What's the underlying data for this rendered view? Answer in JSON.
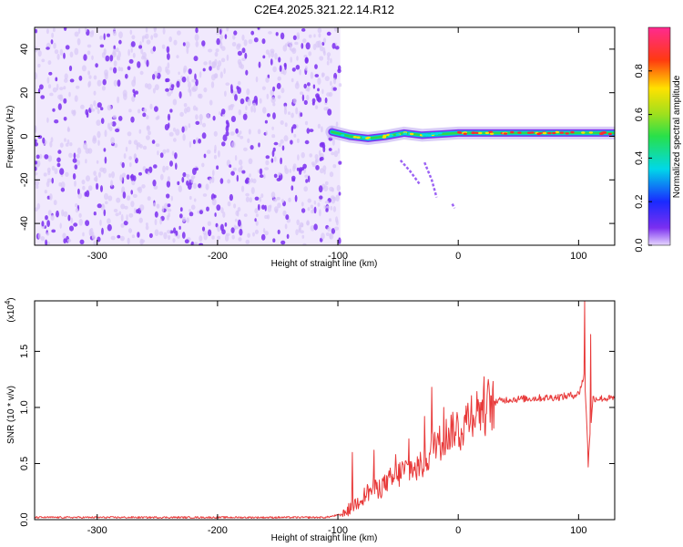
{
  "title": "C2E4.2025.321.22.14.R12",
  "colors": {
    "spectrogram_main": "#7b2ff0",
    "spectrogram_light": "#d9c7f7",
    "snr_line": "#e83a3a",
    "axis": "#000000"
  },
  "chart_data": [
    {
      "type": "heatmap",
      "title": "C2E4.2025.321.22.14.R12",
      "xlabel": "Height of straight line (km)",
      "ylabel": "Frequency (Hz)",
      "xlim": [
        -352,
        130
      ],
      "ylim": [
        -50,
        50
      ],
      "xticks": [
        -300,
        -200,
        -100,
        0,
        100
      ],
      "yticks": [
        -40,
        -20,
        0,
        20,
        40
      ],
      "noise_region_x": [
        -352,
        -98
      ],
      "signal_band": {
        "x": [
          -105,
          -90,
          -75,
          -60,
          -45,
          -30,
          -15,
          0,
          20,
          40,
          60,
          80,
          100,
          130
        ],
        "center_hz": [
          2,
          0,
          -1,
          0,
          1.5,
          0.5,
          1,
          1.5,
          1.5,
          1.5,
          1.5,
          1.5,
          1.5,
          1.5
        ]
      },
      "fading_trails": [
        {
          "x": [
            -48,
            -40,
            -32
          ],
          "y": [
            -11,
            -16,
            -22
          ]
        },
        {
          "x": [
            -28,
            -22,
            -18
          ],
          "y": [
            -12,
            -20,
            -28
          ]
        },
        {
          "x": [
            -5,
            -3
          ],
          "y": [
            -31,
            -33
          ]
        }
      ],
      "colorbar": {
        "label": "Normalized spectral amplitude",
        "range": [
          0,
          1
        ],
        "ticks": [
          "0.0",
          "0.2",
          "0.4",
          "0.6",
          "0.8"
        ]
      }
    },
    {
      "type": "line",
      "xlabel": "Height of straight line (km)",
      "ylabel": "SNR (10 * v/v)",
      "yscale_label": "(x10",
      "yscale_exp": "4",
      "xlim": [
        -352,
        130
      ],
      "ylim": [
        0,
        1.95
      ],
      "xticks": [
        -300,
        -200,
        -100,
        0,
        100
      ],
      "yticks": [
        "0.0",
        "0.5",
        "1.0",
        "1.5"
      ],
      "series": [
        {
          "x": [
            -352,
            -300,
            -250,
            -200,
            -150,
            -110,
            -95,
            -85,
            -75,
            -65,
            -55,
            -45,
            -35,
            -25,
            -20,
            -15,
            -10,
            -5,
            0,
            5,
            10,
            20,
            30,
            40,
            60,
            80,
            90,
            100,
            105,
            108,
            112,
            120,
            130
          ],
          "y": [
            0.02,
            0.02,
            0.02,
            0.02,
            0.02,
            0.02,
            0.05,
            0.15,
            0.25,
            0.3,
            0.35,
            0.45,
            0.45,
            0.55,
            0.7,
            0.7,
            0.75,
            0.8,
            0.8,
            0.85,
            0.95,
            1.0,
            1.05,
            1.07,
            1.08,
            1.09,
            1.1,
            1.12,
            1.3,
            0.55,
            1.08,
            1.08,
            1.08
          ],
          "spikes": [
            {
              "x": -88,
              "y": 0.6
            },
            {
              "x": -70,
              "y": 0.62
            },
            {
              "x": -52,
              "y": 0.58
            },
            {
              "x": -41,
              "y": 0.72
            },
            {
              "x": -28,
              "y": 0.92
            },
            {
              "x": -22,
              "y": 1.18
            },
            {
              "x": -12,
              "y": 1.0
            },
            {
              "x": 2,
              "y": 0.62
            },
            {
              "x": 105,
              "y": 1.95
            },
            {
              "x": 108,
              "y": 0.47
            },
            {
              "x": 110,
              "y": 1.65
            }
          ]
        }
      ]
    }
  ]
}
